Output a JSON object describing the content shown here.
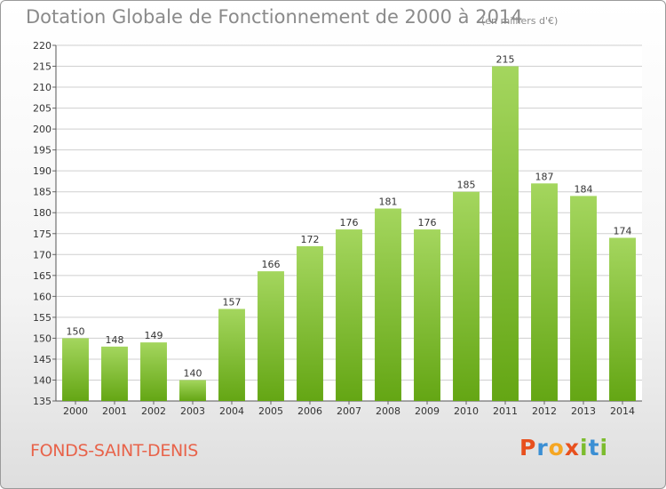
{
  "chart_data": {
    "type": "bar",
    "title": "Dotation Globale de Fonctionnement de 2000 à 2014",
    "subtitle": "(en milliers d'€)",
    "categories": [
      "2000",
      "2001",
      "2002",
      "2003",
      "2004",
      "2005",
      "2006",
      "2007",
      "2008",
      "2009",
      "2010",
      "2011",
      "2012",
      "2013",
      "2014"
    ],
    "values": [
      150,
      148,
      149,
      140,
      157,
      166,
      172,
      176,
      181,
      176,
      185,
      215,
      187,
      184,
      174
    ],
    "ylim": [
      135,
      220
    ],
    "yticks": [
      135,
      140,
      145,
      150,
      155,
      160,
      165,
      170,
      175,
      180,
      185,
      190,
      195,
      200,
      205,
      210,
      215,
      220
    ],
    "grid": true,
    "bar_color": "#7cbc2e"
  },
  "footer": {
    "commune": "FONDS-SAINT-DENIS",
    "logo": [
      "P",
      "r",
      "o",
      "x",
      "i",
      "t",
      "i"
    ]
  },
  "colors": {
    "logo": [
      "#e8501e",
      "#3b8fd4",
      "#f5a623",
      "#e8501e",
      "#7cbc2e",
      "#3b8fd4",
      "#7cbc2e"
    ]
  }
}
